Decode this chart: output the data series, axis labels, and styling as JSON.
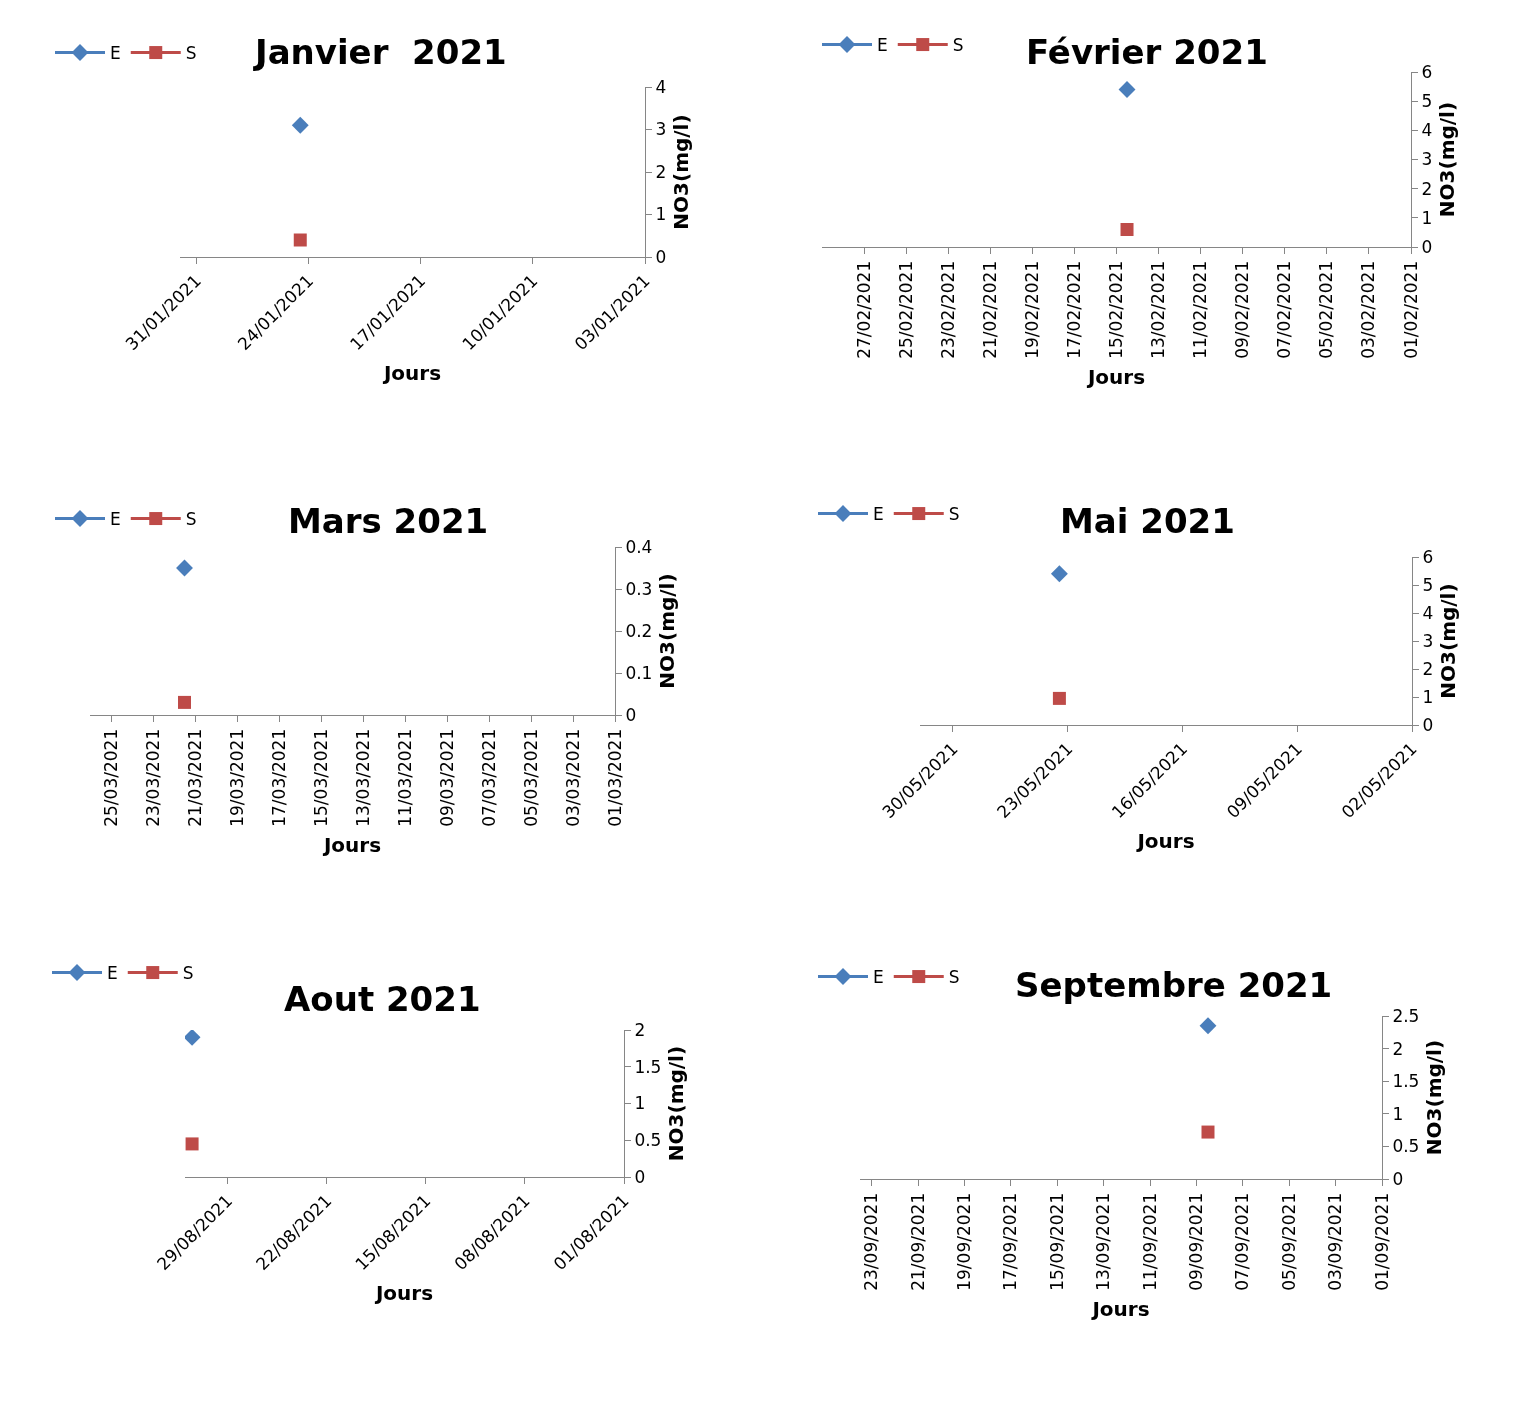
{
  "chart_data": [
    {
      "type": "line",
      "title": "Janvier  2021",
      "xlabel": "Jours",
      "ylabel": "NO3(mg/l)",
      "legend": "top left",
      "x": [
        "2021-01-24T12:00"
      ],
      "series": [
        {
          "name": "E",
          "color": "#4a7ebb",
          "marker": "diamond",
          "values": [
            3.1
          ]
        },
        {
          "name": "S",
          "color": "#be4b48",
          "marker": "square",
          "values": [
            0.4
          ]
        }
      ],
      "xlim": [
        "2021-02-01",
        "2021-01-03"
      ],
      "xticks": [
        {
          "value": "2021-01-31",
          "label": "31/01/2021"
        },
        {
          "value": "2021-01-24",
          "label": "24/01/2021"
        },
        {
          "value": "2021-01-17",
          "label": "17/01/2021"
        },
        {
          "value": "2021-01-10",
          "label": "10/01/2021"
        },
        {
          "value": "2021-01-03",
          "label": "03/01/2021"
        }
      ],
      "ylim": [
        0,
        4
      ],
      "yticks": [
        0,
        1,
        2,
        3,
        4
      ]
    },
    {
      "type": "line",
      "title": "Février 2021",
      "xlabel": "Jours",
      "ylabel": "NO3(mg/l)",
      "legend": "top left",
      "x": [
        "2021-02-14T12:00"
      ],
      "series": [
        {
          "name": "E",
          "color": "#4a7ebb",
          "marker": "diamond",
          "values": [
            5.4
          ]
        },
        {
          "name": "S",
          "color": "#be4b48",
          "marker": "square",
          "values": [
            0.6
          ]
        }
      ],
      "xlim": [
        "2021-03-01",
        "2021-02-01"
      ],
      "xticks": [
        {
          "value": "2021-02-27",
          "label": "27/02/2021"
        },
        {
          "value": "2021-02-25",
          "label": "25/02/2021"
        },
        {
          "value": "2021-02-23",
          "label": "23/02/2021"
        },
        {
          "value": "2021-02-21",
          "label": "21/02/2021"
        },
        {
          "value": "2021-02-19",
          "label": "19/02/2021"
        },
        {
          "value": "2021-02-17",
          "label": "17/02/2021"
        },
        {
          "value": "2021-02-15",
          "label": "15/02/2021"
        },
        {
          "value": "2021-02-13",
          "label": "13/02/2021"
        },
        {
          "value": "2021-02-11",
          "label": "11/02/2021"
        },
        {
          "value": "2021-02-09",
          "label": "09/02/2021"
        },
        {
          "value": "2021-02-07",
          "label": "07/02/2021"
        },
        {
          "value": "2021-02-05",
          "label": "05/02/2021"
        },
        {
          "value": "2021-02-03",
          "label": "03/02/2021"
        },
        {
          "value": "2021-02-01",
          "label": "01/02/2021"
        }
      ],
      "ylim": [
        0,
        6
      ],
      "yticks": [
        0,
        1,
        2,
        3,
        4,
        5,
        6
      ]
    },
    {
      "type": "line",
      "title": "Mars 2021",
      "xlabel": "Jours",
      "ylabel": "NO3(mg/l)",
      "legend": "top left",
      "x": [
        "2021-03-21T12:00"
      ],
      "series": [
        {
          "name": "E",
          "color": "#4a7ebb",
          "marker": "diamond",
          "values": [
            0.35
          ]
        },
        {
          "name": "S",
          "color": "#be4b48",
          "marker": "square",
          "values": [
            0.03
          ]
        }
      ],
      "xlim": [
        "2021-03-26",
        "2021-03-01"
      ],
      "xticks": [
        {
          "value": "2021-03-25",
          "label": "25/03/2021"
        },
        {
          "value": "2021-03-23",
          "label": "23/03/2021"
        },
        {
          "value": "2021-03-21",
          "label": "21/03/2021"
        },
        {
          "value": "2021-03-19",
          "label": "19/03/2021"
        },
        {
          "value": "2021-03-17",
          "label": "17/03/2021"
        },
        {
          "value": "2021-03-15",
          "label": "15/03/2021"
        },
        {
          "value": "2021-03-13",
          "label": "13/03/2021"
        },
        {
          "value": "2021-03-11",
          "label": "11/03/2021"
        },
        {
          "value": "2021-03-09",
          "label": "09/03/2021"
        },
        {
          "value": "2021-03-07",
          "label": "07/03/2021"
        },
        {
          "value": "2021-03-05",
          "label": "05/03/2021"
        },
        {
          "value": "2021-03-03",
          "label": "03/03/2021"
        },
        {
          "value": "2021-03-01",
          "label": "01/03/2021"
        }
      ],
      "ylim": [
        0,
        0.4
      ],
      "yticks": [
        0,
        0.1,
        0.2,
        0.3,
        0.4
      ]
    },
    {
      "type": "line",
      "title": "Mai 2021",
      "xlabel": "Jours",
      "ylabel": "NO3(mg/l)",
      "legend": "top left",
      "x": [
        "2021-05-23T12:00"
      ],
      "series": [
        {
          "name": "E",
          "color": "#4a7ebb",
          "marker": "diamond",
          "values": [
            5.4
          ]
        },
        {
          "name": "S",
          "color": "#be4b48",
          "marker": "square",
          "values": [
            0.95
          ]
        }
      ],
      "xlim": [
        "2021-06-01",
        "2021-05-02"
      ],
      "xticks": [
        {
          "value": "2021-05-30",
          "label": "30/05/2021"
        },
        {
          "value": "2021-05-23",
          "label": "23/05/2021"
        },
        {
          "value": "2021-05-16",
          "label": "16/05/2021"
        },
        {
          "value": "2021-05-09",
          "label": "09/05/2021"
        },
        {
          "value": "2021-05-02",
          "label": "02/05/2021"
        }
      ],
      "ylim": [
        0,
        6
      ],
      "yticks": [
        0,
        1,
        2,
        3,
        4,
        5,
        6
      ]
    },
    {
      "type": "line",
      "title": "Aout 2021",
      "xlabel": "Jours",
      "ylabel": "NO3(mg/l)",
      "legend": "top left",
      "x": [
        "2021-08-31T12:00"
      ],
      "series": [
        {
          "name": "E",
          "color": "#4a7ebb",
          "marker": "diamond",
          "values": [
            1.9
          ]
        },
        {
          "name": "S",
          "color": "#be4b48",
          "marker": "square",
          "values": [
            0.45
          ]
        }
      ],
      "xlim": [
        "2021-09-01",
        "2021-08-01"
      ],
      "xticks": [
        {
          "value": "2021-08-29",
          "label": "29/08/2021"
        },
        {
          "value": "2021-08-22",
          "label": "22/08/2021"
        },
        {
          "value": "2021-08-15",
          "label": "15/08/2021"
        },
        {
          "value": "2021-08-08",
          "label": "08/08/2021"
        },
        {
          "value": "2021-08-01",
          "label": "01/08/2021"
        }
      ],
      "ylim": [
        0,
        2
      ],
      "yticks": [
        0,
        0.5,
        1,
        1.5,
        2
      ]
    },
    {
      "type": "line",
      "title": "Septembre 2021",
      "xlabel": "Jours",
      "ylabel": "NO3(mg/l)",
      "legend": "top left",
      "x": [
        "2021-09-08T12:00"
      ],
      "series": [
        {
          "name": "E",
          "color": "#4a7ebb",
          "marker": "diamond",
          "values": [
            2.35
          ]
        },
        {
          "name": "S",
          "color": "#be4b48",
          "marker": "square",
          "values": [
            0.72
          ]
        }
      ],
      "xlim": [
        "2021-09-23T12:00",
        "2021-09-01"
      ],
      "xticks": [
        {
          "value": "2021-09-23",
          "label": "23/09/2021"
        },
        {
          "value": "2021-09-21",
          "label": "21/09/2021"
        },
        {
          "value": "2021-09-19",
          "label": "19/09/2021"
        },
        {
          "value": "2021-09-17",
          "label": "17/09/2021"
        },
        {
          "value": "2021-09-15",
          "label": "15/09/2021"
        },
        {
          "value": "2021-09-13",
          "label": "13/09/2021"
        },
        {
          "value": "2021-09-11",
          "label": "11/09/2021"
        },
        {
          "value": "2021-09-09",
          "label": "09/09/2021"
        },
        {
          "value": "2021-09-07",
          "label": "07/09/2021"
        },
        {
          "value": "2021-09-05",
          "label": "05/09/2021"
        },
        {
          "value": "2021-09-03",
          "label": "03/09/2021"
        },
        {
          "value": "2021-09-01",
          "label": "01/09/2021"
        }
      ],
      "ylim": [
        0,
        2.5
      ],
      "yticks": [
        0,
        0.5,
        1,
        1.5,
        2,
        2.5
      ]
    }
  ]
}
